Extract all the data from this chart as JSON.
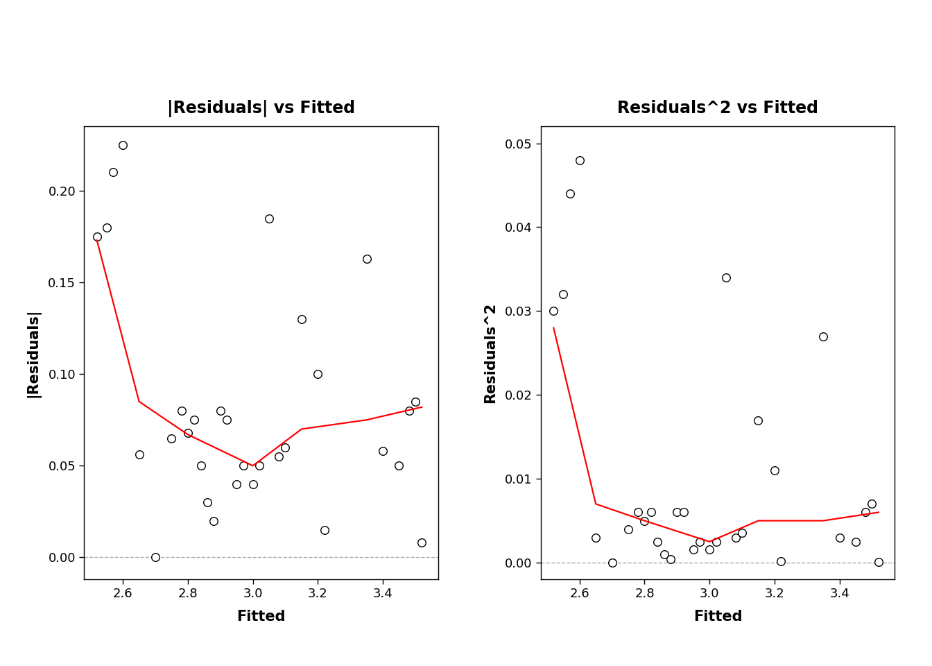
{
  "plot1": {
    "title": "|Residuals| vs Fitted",
    "xlabel": "Fitted",
    "ylabel": "|Residuals|",
    "scatter_x": [
      2.52,
      2.55,
      2.57,
      2.6,
      2.65,
      2.7,
      2.75,
      2.78,
      2.8,
      2.82,
      2.84,
      2.86,
      2.88,
      2.9,
      2.92,
      2.95,
      2.97,
      3.0,
      3.02,
      3.05,
      3.08,
      3.1,
      3.15,
      3.2,
      3.22,
      3.35,
      3.4,
      3.45,
      3.48,
      3.5,
      3.52
    ],
    "scatter_y": [
      0.175,
      0.18,
      0.21,
      0.225,
      0.056,
      0.0,
      0.065,
      0.08,
      0.068,
      0.075,
      0.05,
      0.03,
      0.02,
      0.08,
      0.075,
      0.04,
      0.05,
      0.04,
      0.05,
      0.185,
      0.055,
      0.06,
      0.13,
      0.1,
      0.015,
      0.163,
      0.058,
      0.05,
      0.08,
      0.085,
      0.008
    ],
    "line_x": [
      2.52,
      2.65,
      2.8,
      3.0,
      3.15,
      3.35,
      3.52
    ],
    "line_y": [
      0.173,
      0.085,
      0.067,
      0.05,
      0.07,
      0.075,
      0.082
    ],
    "xlim": [
      2.48,
      3.57
    ],
    "ylim": [
      -0.012,
      0.235
    ],
    "yticks": [
      0.0,
      0.05,
      0.1,
      0.15,
      0.2
    ],
    "xticks": [
      2.6,
      2.8,
      3.0,
      3.2,
      3.4
    ],
    "scatter_color": "white",
    "scatter_edgecolor": "black",
    "line_color": "red"
  },
  "plot2": {
    "title": "Residuals^2 vs Fitted",
    "xlabel": "Fitted",
    "ylabel": "Residuals^2",
    "scatter_x": [
      2.52,
      2.55,
      2.57,
      2.6,
      2.65,
      2.7,
      2.75,
      2.78,
      2.8,
      2.82,
      2.84,
      2.86,
      2.88,
      2.9,
      2.92,
      2.95,
      2.97,
      3.0,
      3.02,
      3.05,
      3.08,
      3.1,
      3.15,
      3.2,
      3.22,
      3.35,
      3.4,
      3.45,
      3.48,
      3.5,
      3.52
    ],
    "scatter_y": [
      0.03,
      0.032,
      0.044,
      0.048,
      0.003,
      0.0,
      0.004,
      0.006,
      0.005,
      0.006,
      0.0025,
      0.001,
      0.0004,
      0.006,
      0.006,
      0.0016,
      0.0025,
      0.0016,
      0.0025,
      0.034,
      0.003,
      0.0036,
      0.017,
      0.011,
      0.0002,
      0.027,
      0.003,
      0.0025,
      0.006,
      0.007,
      0.0001
    ],
    "line_x": [
      2.52,
      2.65,
      2.8,
      3.0,
      3.15,
      3.35,
      3.52
    ],
    "line_y": [
      0.028,
      0.007,
      0.005,
      0.0025,
      0.005,
      0.005,
      0.006
    ],
    "xlim": [
      2.48,
      3.57
    ],
    "ylim": [
      -0.002,
      0.052
    ],
    "yticks": [
      0.0,
      0.01,
      0.02,
      0.03,
      0.04,
      0.05
    ],
    "xticks": [
      2.6,
      2.8,
      3.0,
      3.2,
      3.4
    ],
    "scatter_color": "white",
    "scatter_edgecolor": "black",
    "line_color": "red"
  },
  "background_color": "white",
  "title_fontsize": 17,
  "label_fontsize": 15,
  "tick_fontsize": 13
}
